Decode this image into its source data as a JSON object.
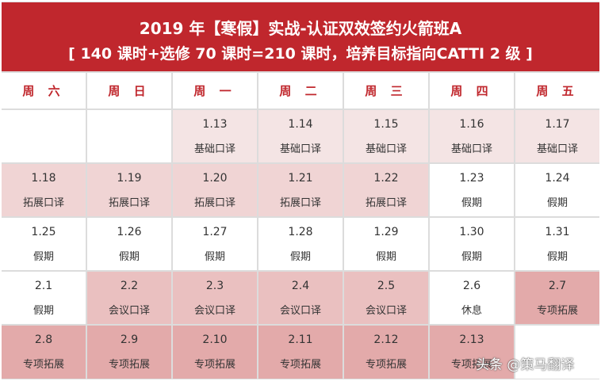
{
  "header": {
    "title": "2019 年【寒假】实战-认证双效签约火箭班A",
    "subtitle": "[ 140 课时+选修 70 课时=210 课时，培养目标指向CATTI 2 级 ]"
  },
  "colors": {
    "banner": "#c0272d",
    "basic": "#f4e4e4",
    "extension": "#f0d4d4",
    "conference": "#eac0c0",
    "special": "#e3aaaa",
    "grid_line": "#dcdcdc"
  },
  "weekdays": [
    "周 六",
    "周 日",
    "周 一",
    "周 二",
    "周 三",
    "周 四",
    "周 五"
  ],
  "rows": [
    [
      {
        "date": "",
        "label": "",
        "type": "white"
      },
      {
        "date": "",
        "label": "",
        "type": "white"
      },
      {
        "date": "1.13",
        "label": "基础口译",
        "type": "basic"
      },
      {
        "date": "1.14",
        "label": "基础口译",
        "type": "basic"
      },
      {
        "date": "1.15",
        "label": "基础口译",
        "type": "basic"
      },
      {
        "date": "1.16",
        "label": "基础口译",
        "type": "basic"
      },
      {
        "date": "1.17",
        "label": "基础口译",
        "type": "basic"
      }
    ],
    [
      {
        "date": "1.18",
        "label": "拓展口译",
        "type": "ext"
      },
      {
        "date": "1.19",
        "label": "拓展口译",
        "type": "ext"
      },
      {
        "date": "1.20",
        "label": "拓展口译",
        "type": "ext"
      },
      {
        "date": "1.21",
        "label": "拓展口译",
        "type": "ext"
      },
      {
        "date": "1.22",
        "label": "拓展口译",
        "type": "ext"
      },
      {
        "date": "1.23",
        "label": "假期",
        "type": "white"
      },
      {
        "date": "1.24",
        "label": "假期",
        "type": "white"
      }
    ],
    [
      {
        "date": "1.25",
        "label": "假期",
        "type": "white"
      },
      {
        "date": "1.26",
        "label": "假期",
        "type": "white"
      },
      {
        "date": "1.27",
        "label": "假期",
        "type": "white"
      },
      {
        "date": "1.28",
        "label": "假期",
        "type": "white"
      },
      {
        "date": "1.29",
        "label": "假期",
        "type": "white"
      },
      {
        "date": "1.30",
        "label": "假期",
        "type": "white"
      },
      {
        "date": "1.31",
        "label": "假期",
        "type": "white"
      }
    ],
    [
      {
        "date": "2.1",
        "label": "假期",
        "type": "white"
      },
      {
        "date": "2.2",
        "label": "会议口译",
        "type": "conf"
      },
      {
        "date": "2.3",
        "label": "会议口译",
        "type": "conf"
      },
      {
        "date": "2.4",
        "label": "会议口译",
        "type": "conf"
      },
      {
        "date": "2.5",
        "label": "会议口译",
        "type": "conf"
      },
      {
        "date": "2.6",
        "label": "休息",
        "type": "white"
      },
      {
        "date": "2.7",
        "label": "专项拓展",
        "type": "spec"
      }
    ],
    [
      {
        "date": "2.8",
        "label": "专项拓展",
        "type": "spec"
      },
      {
        "date": "2.9",
        "label": "专项拓展",
        "type": "spec"
      },
      {
        "date": "2.10",
        "label": "专项拓展",
        "type": "spec"
      },
      {
        "date": "2.11",
        "label": "专项拓展",
        "type": "spec"
      },
      {
        "date": "2.12",
        "label": "专项拓展",
        "type": "spec"
      },
      {
        "date": "2.13",
        "label": "专项拓展",
        "type": "spec"
      },
      {
        "date": "",
        "label": "",
        "type": "white"
      }
    ]
  ],
  "watermark": "头条 @策马翻译"
}
